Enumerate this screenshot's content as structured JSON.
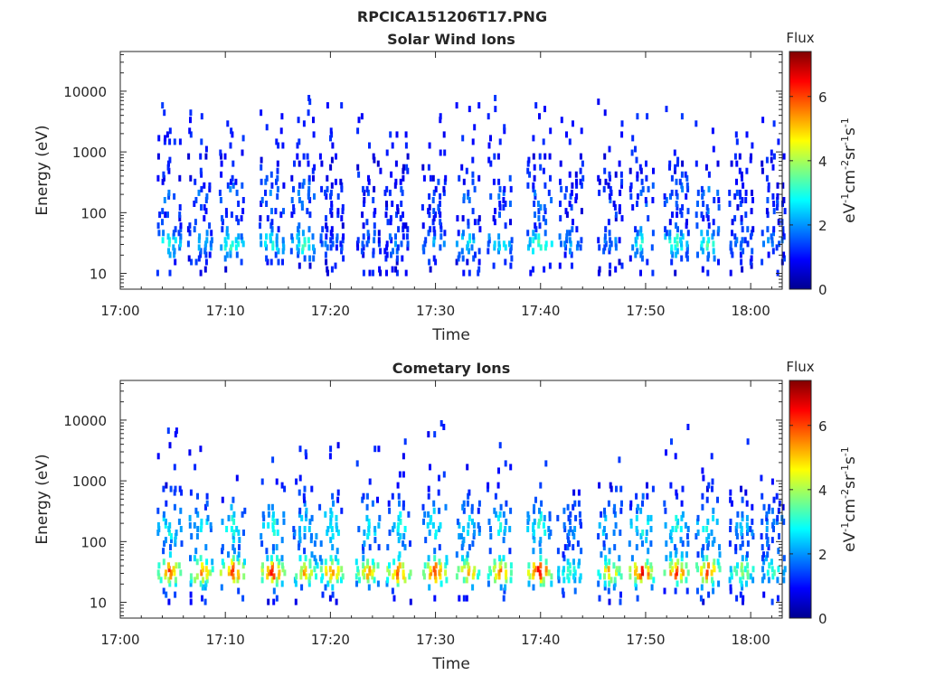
{
  "figure": {
    "title": "RPCICA151206T17.PNG"
  },
  "chart_data": [
    {
      "type": "heatmap",
      "title": "Solar Wind Ions",
      "xlabel": "Time",
      "ylabel": "Energy (eV)",
      "x_range": [
        "17:00",
        "18:03"
      ],
      "x_ticks": [
        "17:00",
        "17:10",
        "17:20",
        "17:30",
        "17:40",
        "17:50",
        "18:00"
      ],
      "y_scale": "log",
      "y_range": [
        5.5,
        45000
      ],
      "y_ticks": [
        "10",
        "100",
        "1000",
        "10000"
      ],
      "colorbar": {
        "title": "Flux",
        "label": "eV-1cm-2sr-1s-1",
        "ticks": [
          "0",
          "2",
          "4",
          "6"
        ],
        "range": [
          0,
          7.4
        ],
        "colormap": "jet"
      },
      "bursts": [
        {
          "t": 4.5,
          "peak": 3.4,
          "emax": 7000
        },
        {
          "t": 7.5,
          "peak": 2.6,
          "emax": 6000
        },
        {
          "t": 10.5,
          "peak": 3.6,
          "emax": 3000
        },
        {
          "t": 14.3,
          "peak": 3.1,
          "emax": 4000
        },
        {
          "t": 17.3,
          "peak": 3.4,
          "emax": 8000
        },
        {
          "t": 20.0,
          "peak": 1.8,
          "emax": 6000
        },
        {
          "t": 23.5,
          "peak": 1.6,
          "emax": 4000
        },
        {
          "t": 26.2,
          "peak": 1.8,
          "emax": 6000
        },
        {
          "t": 29.8,
          "peak": 2.2,
          "emax": 5000
        },
        {
          "t": 33.0,
          "peak": 2.8,
          "emax": 6000
        },
        {
          "t": 36.0,
          "peak": 2.8,
          "emax": 7000
        },
        {
          "t": 39.8,
          "peak": 3.6,
          "emax": 6000
        },
        {
          "t": 42.8,
          "peak": 2.2,
          "emax": 3000
        },
        {
          "t": 46.5,
          "peak": 2.0,
          "emax": 7000
        },
        {
          "t": 49.5,
          "peak": 3.0,
          "emax": 4000
        },
        {
          "t": 52.8,
          "peak": 3.4,
          "emax": 5000
        },
        {
          "t": 55.8,
          "peak": 3.4,
          "emax": 4000
        },
        {
          "t": 59.0,
          "peak": 2.0,
          "emax": 2000
        },
        {
          "t": 62.0,
          "peak": 2.0,
          "emax": 3000
        }
      ]
    },
    {
      "type": "heatmap",
      "title": "Cometary Ions",
      "xlabel": "Time",
      "ylabel": "Energy (eV)",
      "x_range": [
        "17:00",
        "18:03"
      ],
      "x_ticks": [
        "17:00",
        "17:10",
        "17:20",
        "17:30",
        "17:40",
        "17:50",
        "18:00"
      ],
      "y_scale": "log",
      "y_range": [
        5.5,
        45000
      ],
      "y_ticks": [
        "10",
        "100",
        "1000",
        "10000"
      ],
      "colorbar": {
        "title": "Flux",
        "label": "eV-1cm-2sr-1s-1",
        "ticks": [
          "0",
          "2",
          "4",
          "6"
        ],
        "range": [
          0,
          7.4
        ],
        "colormap": "jet"
      },
      "bursts": [
        {
          "t": 4.6,
          "peak": 6.2,
          "emax": 7000
        },
        {
          "t": 7.6,
          "peak": 5.8,
          "emax": 3000
        },
        {
          "t": 10.6,
          "peak": 6.6,
          "emax": 4000
        },
        {
          "t": 14.4,
          "peak": 6.8,
          "emax": 2000
        },
        {
          "t": 17.5,
          "peak": 5.4,
          "emax": 4000
        },
        {
          "t": 20.0,
          "peak": 5.8,
          "emax": 5000
        },
        {
          "t": 23.5,
          "peak": 5.6,
          "emax": 4000
        },
        {
          "t": 26.4,
          "peak": 6.2,
          "emax": 5000
        },
        {
          "t": 29.8,
          "peak": 6.4,
          "emax": 9000
        },
        {
          "t": 33.0,
          "peak": 5.6,
          "emax": 2000
        },
        {
          "t": 36.0,
          "peak": 5.8,
          "emax": 4000
        },
        {
          "t": 39.8,
          "peak": 6.8,
          "emax": 3000
        },
        {
          "t": 42.6,
          "peak": 3.6,
          "emax": 1500
        },
        {
          "t": 46.5,
          "peak": 5.4,
          "emax": 2000
        },
        {
          "t": 49.5,
          "peak": 6.6,
          "emax": 1500
        },
        {
          "t": 52.8,
          "peak": 6.2,
          "emax": 7000
        },
        {
          "t": 55.8,
          "peak": 6.2,
          "emax": 3000
        },
        {
          "t": 59.0,
          "peak": 4.2,
          "emax": 4000
        },
        {
          "t": 62.0,
          "peak": 3.6,
          "emax": 3000
        }
      ]
    }
  ]
}
